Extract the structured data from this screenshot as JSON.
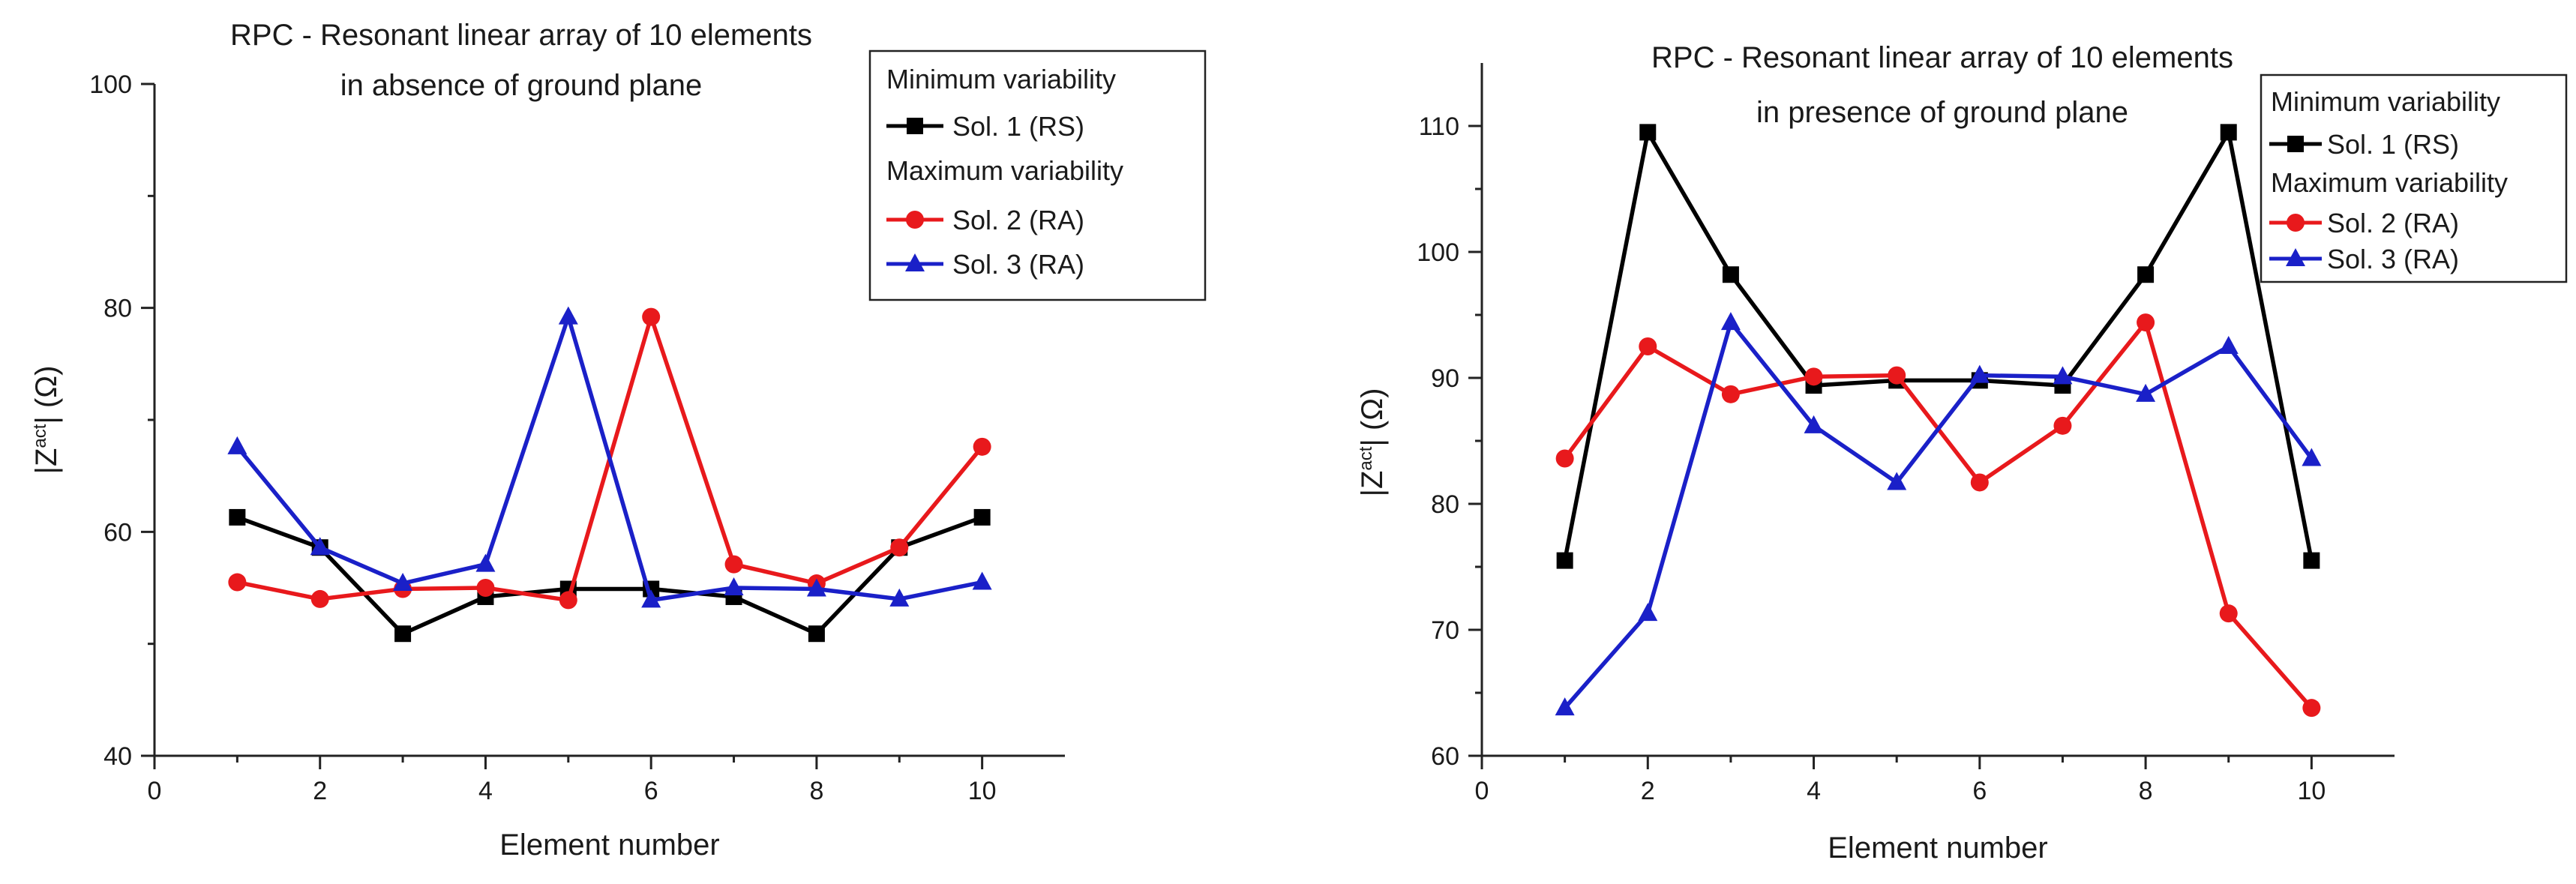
{
  "chart_data": [
    {
      "type": "line",
      "title": "RPC - Resonant linear array of 10 elements",
      "subtitle": "in absence of ground plane",
      "xlabel": "Element number",
      "ylabel_main": "|Z",
      "ylabel_sup": "act",
      "ylabel_end": "| (Ω)",
      "xlim": [
        0,
        11
      ],
      "ylim": [
        40,
        100
      ],
      "xticks": [
        0,
        2,
        4,
        6,
        8,
        10
      ],
      "yticks": [
        40,
        60,
        80,
        100
      ],
      "legend_position": "top-right",
      "legend_groups": [
        "Minimum variability",
        "Maximum variability"
      ],
      "x": [
        1,
        2,
        3,
        4,
        5,
        6,
        7,
        8,
        9,
        10
      ],
      "series": [
        {
          "name": "Sol. 1 (RS)",
          "group": 0,
          "color": "#000000",
          "marker": "square",
          "values": [
            61.3,
            58.6,
            50.9,
            54.2,
            54.9,
            54.9,
            54.2,
            50.9,
            58.6,
            61.3
          ]
        },
        {
          "name": "Sol. 2 (RA)",
          "group": 1,
          "color": "#e8191c",
          "marker": "circle",
          "values": [
            55.5,
            54.0,
            54.9,
            55.0,
            53.9,
            79.2,
            57.1,
            55.4,
            58.6,
            67.6
          ]
        },
        {
          "name": "Sol. 3 (RA)",
          "group": 1,
          "color": "#1a20c8",
          "marker": "triangle",
          "values": [
            67.6,
            58.6,
            55.4,
            57.1,
            79.2,
            53.9,
            55.0,
            54.9,
            54.0,
            55.5
          ]
        }
      ]
    },
    {
      "type": "line",
      "title": "RPC - Resonant linear array of 10 elements",
      "subtitle": "in presence of ground plane",
      "xlabel": "Element number",
      "ylabel_main": "|Z",
      "ylabel_sup": "act",
      "ylabel_end": "| (Ω)",
      "xlim": [
        0,
        11
      ],
      "ylim": [
        60,
        115
      ],
      "xticks": [
        0,
        2,
        4,
        6,
        8,
        10
      ],
      "yticks": [
        60,
        70,
        80,
        90,
        100,
        110
      ],
      "legend_position": "top-right",
      "legend_groups": [
        "Minimum variability",
        "Maximum variability"
      ],
      "x": [
        1,
        2,
        3,
        4,
        5,
        6,
        7,
        8,
        9,
        10
      ],
      "series": [
        {
          "name": "Sol. 1 (RS)",
          "group": 0,
          "color": "#000000",
          "marker": "square",
          "values": [
            75.5,
            109.5,
            98.2,
            89.4,
            89.8,
            89.8,
            89.4,
            98.2,
            109.5,
            75.5
          ]
        },
        {
          "name": "Sol. 2 (RA)",
          "group": 1,
          "color": "#e8191c",
          "marker": "circle",
          "values": [
            83.6,
            92.5,
            88.7,
            90.1,
            90.2,
            81.7,
            86.2,
            94.4,
            71.3,
            63.8
          ]
        },
        {
          "name": "Sol. 3 (RA)",
          "group": 1,
          "color": "#1a20c8",
          "marker": "triangle",
          "values": [
            63.8,
            71.3,
            94.4,
            86.2,
            81.7,
            90.2,
            90.1,
            88.7,
            92.5,
            83.6
          ]
        }
      ]
    }
  ]
}
